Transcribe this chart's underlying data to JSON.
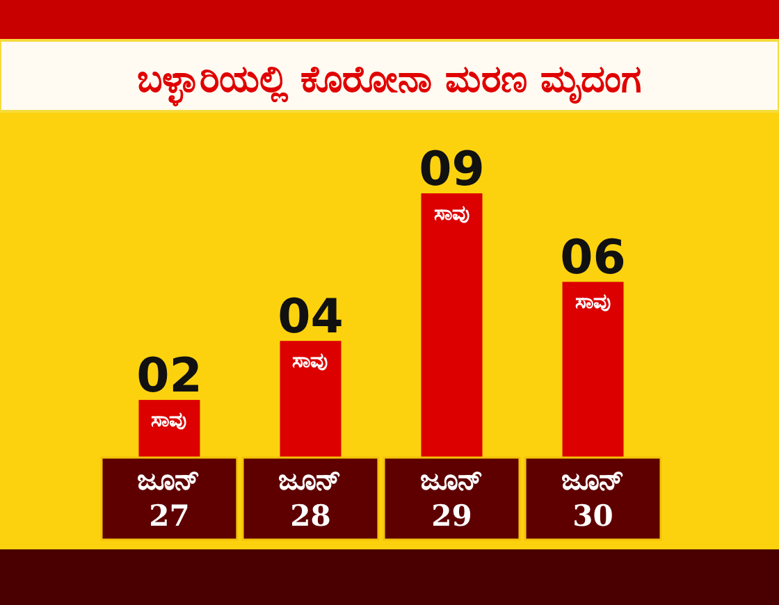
{
  "chart_data": {
    "type": "bar",
    "title": "ಬಳ್ಳಾರಿಯಲ್ಲಿ ಕೊರೋನಾ ಮರಣ ಮೃದಂಗ",
    "categories": [
      "ಜೂನ್ 27",
      "ಜೂನ್ 28",
      "ಜೂನ್ 29",
      "ಜೂನ್ 30"
    ],
    "values": [
      2,
      4,
      9,
      6
    ],
    "value_labels": [
      "02",
      "04",
      "09",
      "06"
    ],
    "color": "#dc0000",
    "annotations": [
      {
        "text": "ಸಾವು",
        "x": "ಜೂನ್ 27",
        "y": 2
      },
      {
        "text": "ಸಾವು",
        "x": "ಜೂನ್ 28",
        "y": 4
      },
      {
        "text": "ಸಾವು",
        "x": "ಜೂನ್ 29",
        "y": 9
      },
      {
        "text": "ಸಾವು",
        "x": "ಜೂನ್ 30",
        "y": 6
      }
    ],
    "tick_labels": "x"
  }
}
